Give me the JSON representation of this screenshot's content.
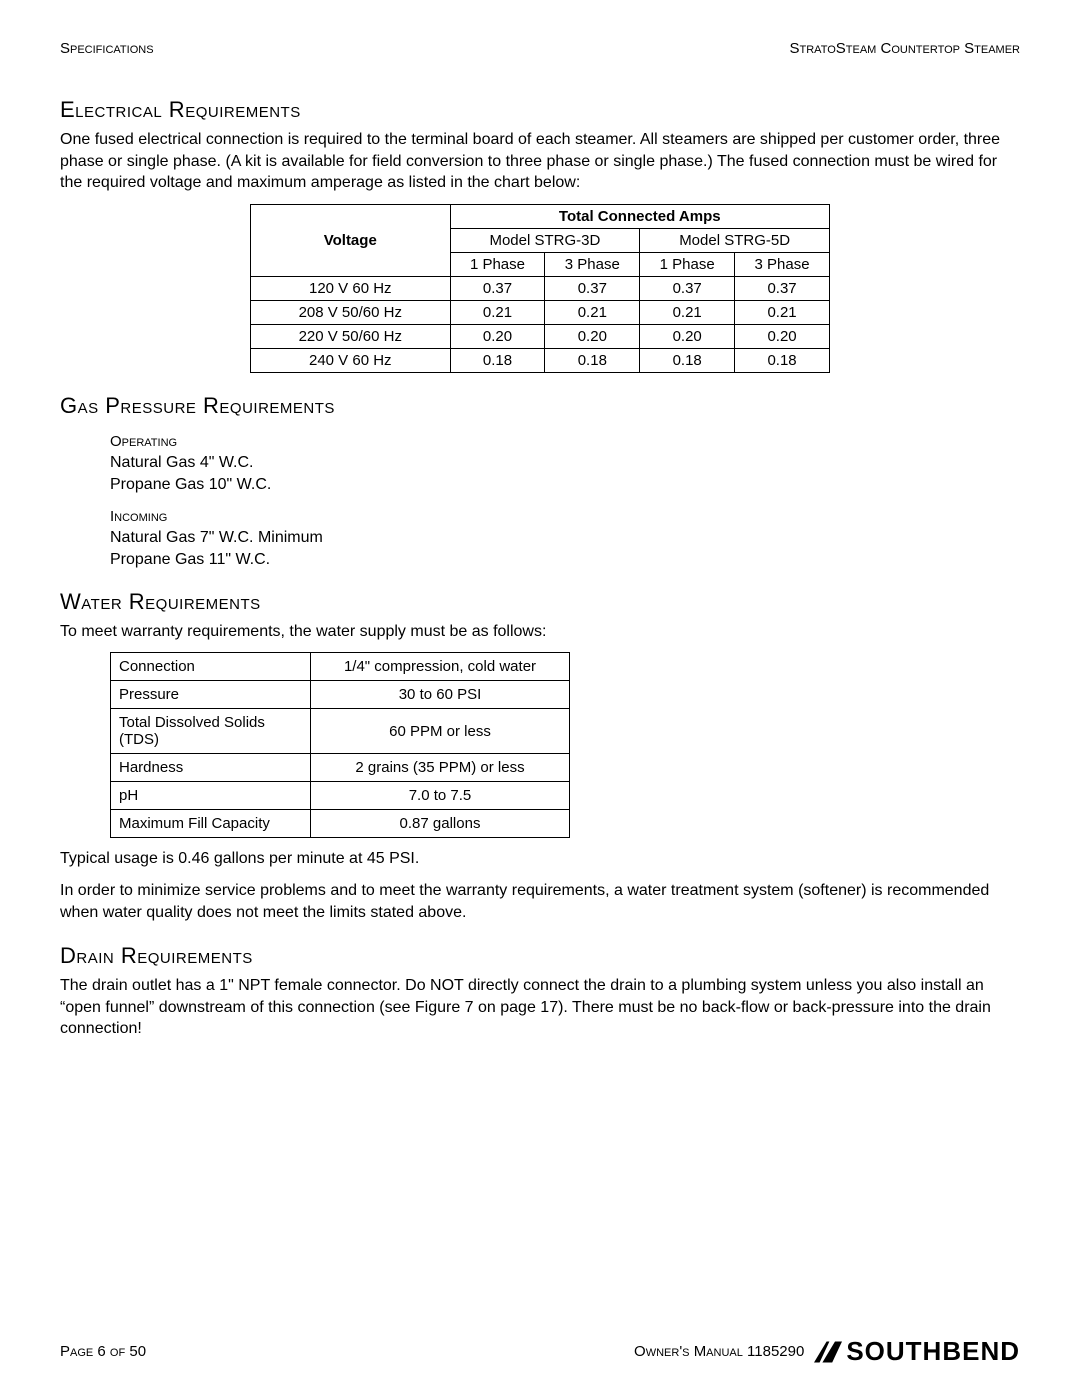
{
  "header": {
    "left": "Specifications",
    "right": "StratoSteam Countertop Steamer"
  },
  "electrical": {
    "title": "Electrical Requirements",
    "para": "One fused electrical connection is required to the terminal board of each steamer. All steamers are shipped per customer order, three phase or single phase. (A kit is available for field conversion to three phase or single phase.) The fused connection must be wired for the required voltage and maximum amperage as listed in the chart below:",
    "table": {
      "top_header": "Total Connected Amps",
      "voltage_header": "Voltage",
      "model3d": "Model STRG-3D",
      "model5d": "Model STRG-5D",
      "p1": "1 Phase",
      "p3": "3 Phase",
      "rows": [
        {
          "v": "120 V  60 Hz",
          "a": "0.37",
          "b": "0.37",
          "c": "0.37",
          "d": "0.37"
        },
        {
          "v": "208 V  50/60 Hz",
          "a": "0.21",
          "b": "0.21",
          "c": "0.21",
          "d": "0.21"
        },
        {
          "v": "220 V  50/60 Hz",
          "a": "0.20",
          "b": "0.20",
          "c": "0.20",
          "d": "0.20"
        },
        {
          "v": "240 V  60 Hz",
          "a": "0.18",
          "b": "0.18",
          "c": "0.18",
          "d": "0.18"
        }
      ]
    }
  },
  "gas": {
    "title": "Gas Pressure Requirements",
    "operating": {
      "head": "Operating",
      "l1": "Natural Gas 4\" W.C.",
      "l2": "Propane Gas 10\" W.C."
    },
    "incoming": {
      "head": "Incoming",
      "l1": "Natural Gas 7\" W.C. Minimum",
      "l2": "Propane Gas 11\" W.C."
    }
  },
  "water": {
    "title": "Water Requirements",
    "intro": "To meet warranty requirements, the water supply must be as follows:",
    "rows": [
      {
        "label": "Connection",
        "val": "1/4\" compression, cold water"
      },
      {
        "label": "Pressure",
        "val": "30 to 60 PSI"
      },
      {
        "label": "Total Dissolved Solids (TDS)",
        "val": "60 PPM or less"
      },
      {
        "label": "Hardness",
        "val": "2 grains (35 PPM) or less"
      },
      {
        "label": "pH",
        "val": "7.0 to 7.5"
      },
      {
        "label": "Maximum Fill Capacity",
        "val": "0.87 gallons"
      }
    ],
    "p1": "Typical usage is 0.46 gallons per minute at 45 PSI.",
    "p2": "In order to minimize service problems and to meet the warranty requirements, a water treatment system (softener) is recommended when water quality does not meet the limits stated above."
  },
  "drain": {
    "title": "Drain Requirements",
    "para": "The drain outlet has a 1\" NPT female connector. Do NOT directly connect the drain to a plumbing system unless you also install an “open funnel” downstream of this connection (see Figure 7 on page 17). There must be no back-flow or back-pressure into the drain connection!"
  },
  "footer": {
    "page": "Page 6 of 50",
    "manual": "Owner's Manual 1185290",
    "brand": "SOUTHBEND"
  }
}
